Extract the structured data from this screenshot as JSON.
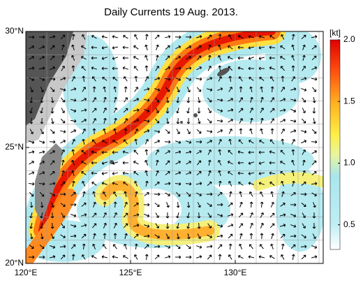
{
  "chart_data": {
    "type": "map",
    "title": "Daily Currents 19 Aug. 2013.",
    "xlim": [
      120,
      134.2
    ],
    "ylim": [
      20,
      30
    ],
    "xticks": [
      {
        "value": 120,
        "label": "120°E"
      },
      {
        "value": 125,
        "label": "125°E"
      },
      {
        "value": 130,
        "label": "130°E"
      }
    ],
    "yticks": [
      {
        "value": 20,
        "label": "20°N"
      },
      {
        "value": 25,
        "label": "25°N"
      },
      {
        "value": 30,
        "label": "30°N"
      }
    ],
    "colorbar_title": "[kt]",
    "colorbar_lim": [
      0.3,
      2.0
    ],
    "colorbar_ticks": [
      {
        "value": 0.5,
        "label": "0.5"
      },
      {
        "value": 1,
        "label": "1.0"
      },
      {
        "value": 1.5,
        "label": "1.5"
      },
      {
        "value": 2,
        "label": "2.0"
      }
    ]
  }
}
